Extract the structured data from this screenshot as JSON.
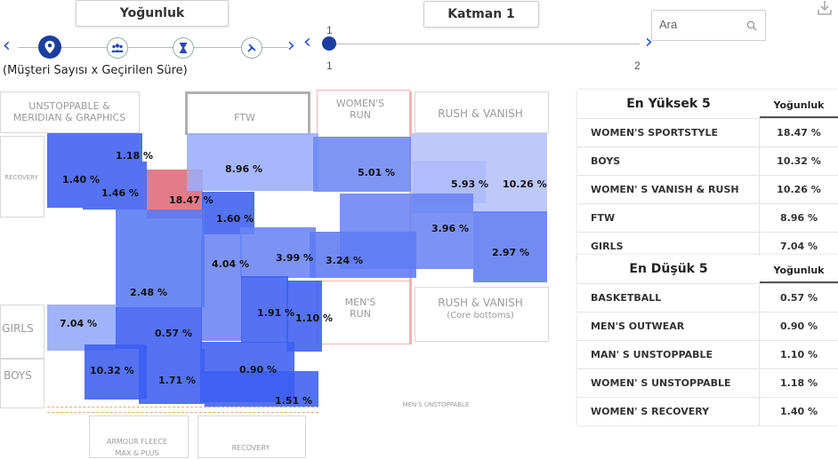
{
  "header": {
    "metric_selector": "Yoğunluk",
    "layer_selector": "Katman 1",
    "metric_subtitle": "(Müşteri Sayısı x Geçirilen Süre)"
  },
  "metric_steps": [
    {
      "icon": "location-pin-icon",
      "active": true
    },
    {
      "icon": "people-group-icon",
      "active": false
    },
    {
      "icon": "hourglass-icon",
      "active": false
    },
    {
      "icon": "no-entry-icon",
      "active": false
    }
  ],
  "layer_slider": {
    "current_value": "1",
    "min_label": "1",
    "max_label": "2",
    "value": 1
  },
  "search": {
    "placeholder": "Ara"
  },
  "download": {
    "icon": "download-icon"
  },
  "floor_labels": {
    "unstoppable_meridian": "UNSTOPPABLE &\nMERIDIAN & GRAPHICS",
    "ftw": "FTW",
    "womens_run": "WOMEN'S\nRUN",
    "rush_vanish": "RUSH & VANISH",
    "recovery_left": "RECOVERY",
    "girls": "GIRLS",
    "boys": "BOYS",
    "mens_run": "MEN'S\nRUN",
    "rush_vanish_core": "RUSH & VANISH",
    "core_bottoms": "(Core bottoms)",
    "mens_unstoppable": "MEN'S UNSTOPPABLE",
    "armour_fleece": "ARMOUR FLEECE\nMAX & PLUS",
    "recovery_bottom": "RECOVERY"
  },
  "zones": [
    {
      "label": "1.18 %",
      "color": "#3c5ef0"
    },
    {
      "label": "1.40 %",
      "color": "#3c5ef0"
    },
    {
      "label": "1.46 %",
      "color": "#3c5ef0"
    },
    {
      "label": "18.47 %",
      "color": "#dd6a78"
    },
    {
      "label": "8.96 %",
      "color": "#9aaefa"
    },
    {
      "label": "5.01 %",
      "color": "#6e88f4"
    },
    {
      "label": "5.93 %",
      "color": "#7f94f6"
    },
    {
      "label": "10.26 %",
      "color": "#b4c2fb"
    },
    {
      "label": "1.60 %",
      "color": "#3c5ef0"
    },
    {
      "label": "3.96 %",
      "color": "#6a84f3"
    },
    {
      "label": "4.04 %",
      "color": "#6a84f3"
    },
    {
      "label": "3.99 %",
      "color": "#6a84f3"
    },
    {
      "label": "3.24 %",
      "color": "#5f7bf2"
    },
    {
      "label": "2.97 %",
      "color": "#5f7bf2"
    },
    {
      "label": "2.48 %",
      "color": "#567af2"
    },
    {
      "label": "1.91 %",
      "color": "#3c5ef0"
    },
    {
      "label": "1.10 %",
      "color": "#3c5ef0"
    },
    {
      "label": "7.04 %",
      "color": "#93a8f9"
    },
    {
      "label": "0.57 %",
      "color": "#3c5ef0"
    },
    {
      "label": "10.32 %",
      "color": "#3c5ef0"
    },
    {
      "label": "1.71 %",
      "color": "#3c5ef0"
    },
    {
      "label": "0.90 %",
      "color": "#3c5ef0"
    },
    {
      "label": "1.51 %",
      "color": "#3c5ef0"
    }
  ],
  "top5": {
    "title": "En Yüksek 5",
    "column": "Yoğunluk",
    "rows": [
      {
        "name": "WOMEN'S SPORTSTYLE",
        "value": "18.47 %"
      },
      {
        "name": "BOYS",
        "value": "10.32 %"
      },
      {
        "name": "WOMEN' S VANISH & RUSH",
        "value": "10.26 %"
      },
      {
        "name": "FTW",
        "value": "8.96 %"
      },
      {
        "name": "GIRLS",
        "value": "7.04 %"
      }
    ]
  },
  "bottom5": {
    "title": "En Düşük 5",
    "column": "Yoğunluk",
    "rows": [
      {
        "name": "BASKETBALL",
        "value": "0.57 %"
      },
      {
        "name": "MEN'S OUTWEAR",
        "value": "0.90 %"
      },
      {
        "name": "MAN' S UNSTOPPABLE",
        "value": "1.10 %"
      },
      {
        "name": "WOMEN' S UNSTOPPABLE",
        "value": "1.18 %"
      },
      {
        "name": "WOMEN' S RECOVERY",
        "value": "1.40 %"
      }
    ]
  }
}
